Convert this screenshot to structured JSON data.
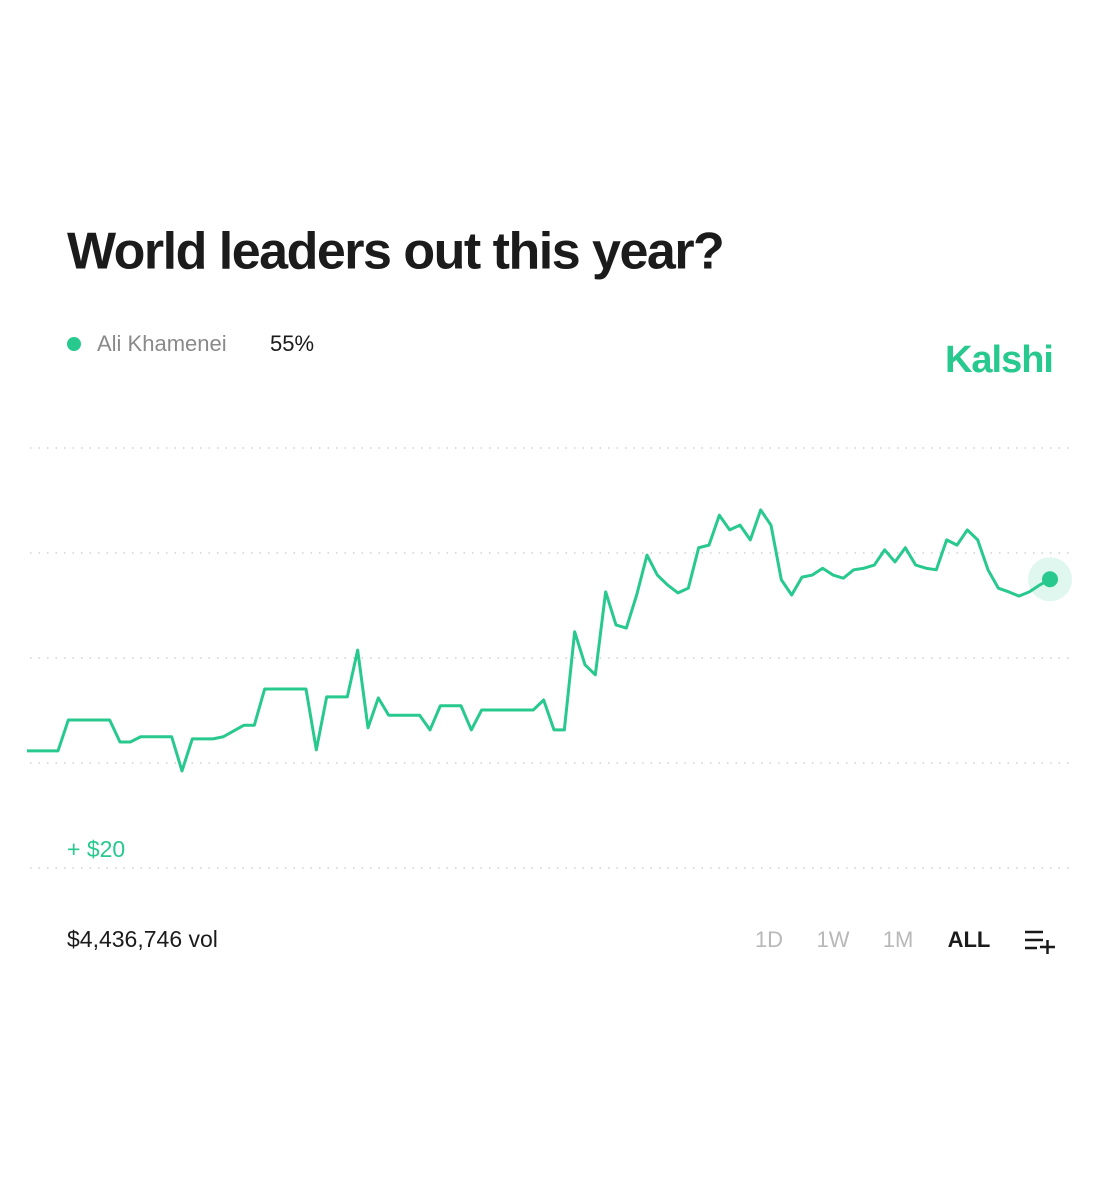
{
  "chart_data": {
    "type": "line",
    "title": "World leaders out this year?",
    "series": [
      {
        "name": "Ali Khamenei",
        "color": "#28c98e",
        "current_label": "55%",
        "values": [
          22.3,
          22.3,
          22.3,
          22.3,
          28.2,
          28.2,
          28.2,
          28.2,
          28.2,
          24.0,
          24.0,
          25.0,
          25.0,
          25.0,
          25.0,
          18.5,
          24.6,
          24.6,
          24.6,
          25.0,
          26.1,
          27.2,
          27.2,
          34.1,
          34.1,
          34.1,
          34.1,
          34.1,
          22.5,
          32.6,
          32.6,
          32.6,
          41.5,
          26.7,
          32.4,
          29.1,
          29.1,
          29.1,
          29.1,
          26.3,
          30.9,
          30.9,
          30.9,
          26.3,
          30.1,
          30.1,
          30.1,
          30.1,
          30.1,
          30.1,
          32.0,
          26.3,
          26.3,
          45.0,
          38.7,
          36.8,
          52.6,
          46.3,
          45.7,
          52.0,
          59.6,
          55.8,
          53.9,
          52.4,
          53.3,
          61.0,
          61.5,
          67.2,
          64.4,
          65.3,
          62.5,
          68.2,
          65.3,
          54.9,
          52.0,
          55.4,
          55.8,
          57.1,
          55.8,
          55.2,
          56.8,
          57.1,
          57.7,
          60.6,
          58.3,
          61.0,
          57.7,
          57.1,
          56.8,
          62.5,
          61.5,
          64.4,
          62.5,
          56.8,
          53.3,
          52.6,
          51.8,
          52.6,
          53.9,
          55.0
        ]
      }
    ],
    "ylim": [
      0,
      80
    ],
    "yticks": [
      0,
      20,
      40,
      60,
      80
    ],
    "grid": true
  },
  "ui": {
    "brand": "Kalshi",
    "annotation": "+ $20",
    "volume": "$4,436,746 vol",
    "ranges": [
      "1D",
      "1W",
      "1M",
      "ALL"
    ],
    "active_range": "ALL"
  }
}
